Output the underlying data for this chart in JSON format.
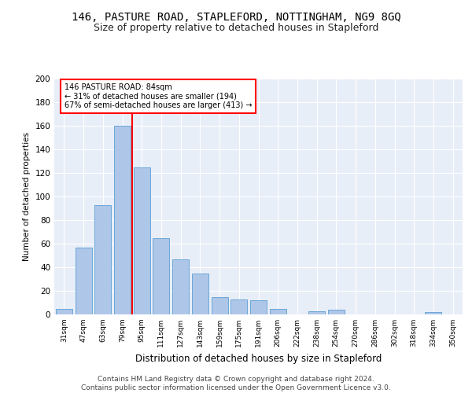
{
  "title": "146, PASTURE ROAD, STAPLEFORD, NOTTINGHAM, NG9 8GQ",
  "subtitle": "Size of property relative to detached houses in Stapleford",
  "xlabel": "Distribution of detached houses by size in Stapleford",
  "ylabel": "Number of detached properties",
  "categories": [
    "31sqm",
    "47sqm",
    "63sqm",
    "79sqm",
    "95sqm",
    "111sqm",
    "127sqm",
    "143sqm",
    "159sqm",
    "175sqm",
    "191sqm",
    "206sqm",
    "222sqm",
    "238sqm",
    "254sqm",
    "270sqm",
    "286sqm",
    "302sqm",
    "318sqm",
    "334sqm",
    "350sqm"
  ],
  "values": [
    5,
    57,
    93,
    160,
    125,
    65,
    47,
    35,
    15,
    13,
    12,
    5,
    0,
    3,
    4,
    0,
    0,
    0,
    0,
    2,
    0
  ],
  "bar_color": "#aec6e8",
  "bar_edge_color": "#5a9fd4",
  "vline_x": 3.5,
  "vline_color": "red",
  "annotation_text": "146 PASTURE ROAD: 84sqm\n← 31% of detached houses are smaller (194)\n67% of semi-detached houses are larger (413) →",
  "annotation_box_color": "white",
  "annotation_box_edge": "red",
  "ylim": [
    0,
    200
  ],
  "yticks": [
    0,
    20,
    40,
    60,
    80,
    100,
    120,
    140,
    160,
    180,
    200
  ],
  "footer": "Contains HM Land Registry data © Crown copyright and database right 2024.\nContains public sector information licensed under the Open Government Licence v3.0.",
  "bg_color": "#e8eef8",
  "grid_color": "white",
  "title_fontsize": 10,
  "subtitle_fontsize": 9,
  "footer_fontsize": 6.5
}
